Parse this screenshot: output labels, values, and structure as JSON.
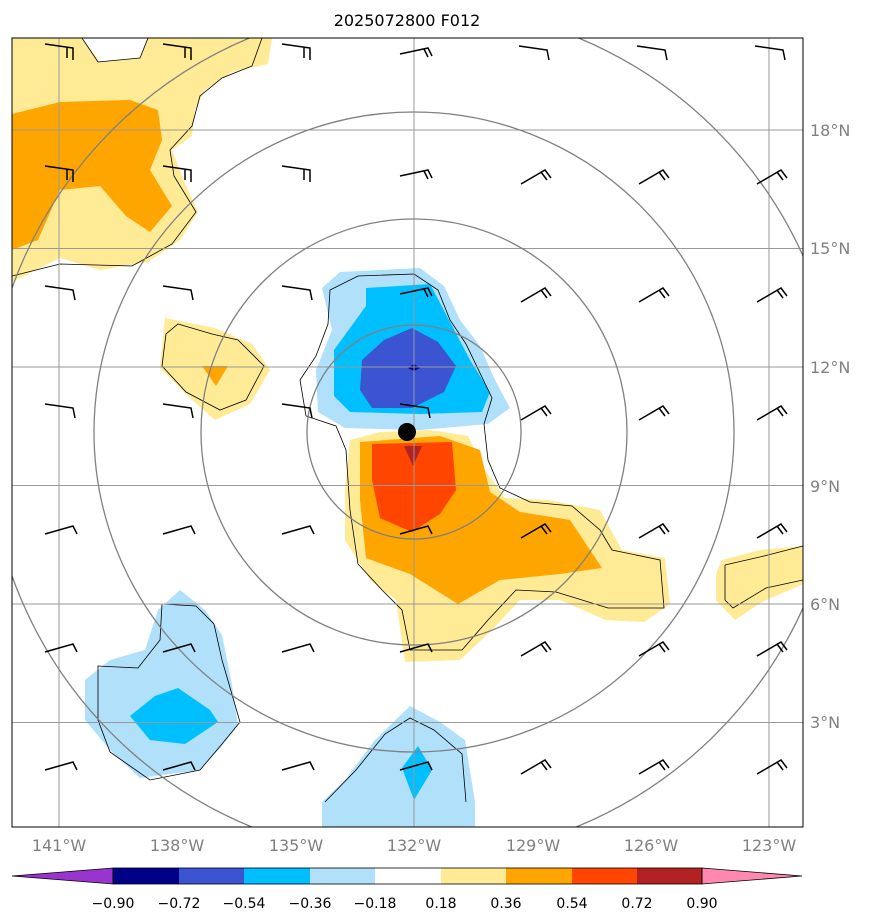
{
  "title": "2025072800 F012",
  "colors": {
    "contour_fill": [
      "#9a34cf",
      "#000088",
      "#3a54d2",
      "#00bfff",
      "#b0e0fa",
      "#ffffff",
      "#ffeb96",
      "#ffa500",
      "#ff4500",
      "#b22222",
      "#ff88b0"
    ],
    "grid": "#999999",
    "range_rings": "#808080",
    "wind_barbs": "#000000",
    "center_marker": "#000000"
  },
  "map": {
    "lon_range": [
      -142,
      -122.5
    ],
    "lat_range": [
      0.3,
      20.3
    ],
    "lon_ticks": [
      {
        "value": -141,
        "label": "141°W"
      },
      {
        "value": -138,
        "label": "138°W"
      },
      {
        "value": -135,
        "label": "135°W"
      },
      {
        "value": -132,
        "label": "132°W"
      },
      {
        "value": -129,
        "label": "129°W"
      },
      {
        "value": -126,
        "label": "126°W"
      },
      {
        "value": -123,
        "label": "123°W"
      }
    ],
    "lat_ticks": [
      {
        "value": 18,
        "label": "18°N"
      },
      {
        "value": 15,
        "label": "15°N"
      },
      {
        "value": 12,
        "label": "12°N"
      },
      {
        "value": 9,
        "label": "9°N"
      },
      {
        "value": 6,
        "label": "6°N"
      },
      {
        "value": 3,
        "label": "3°N"
      }
    ],
    "center": {
      "lon": -132.2,
      "lat": 10.4
    },
    "range_ring_radii_deg": [
      2.7,
      5.4,
      8.1,
      10.8
    ]
  },
  "colorbar": {
    "levels": [
      "−0.90",
      "−0.72",
      "−0.54",
      "−0.36",
      "−0.18",
      "0.18",
      "0.36",
      "0.54",
      "0.72",
      "0.90"
    ],
    "extend": "both"
  }
}
